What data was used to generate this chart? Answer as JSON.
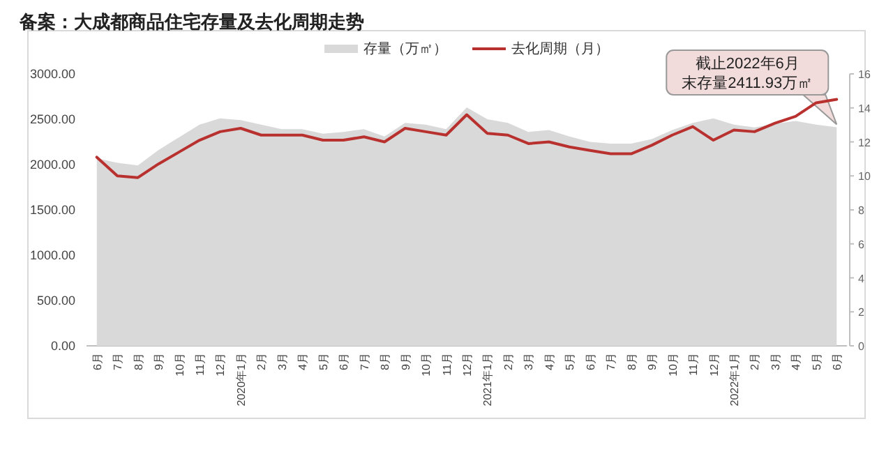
{
  "chart_data": {
    "type": "area",
    "title": "备案：大成都商品住宅存量及去化周期走势",
    "categories": [
      "6月",
      "7月",
      "8月",
      "9月",
      "10月",
      "11月",
      "12月",
      "2020年1月",
      "2月",
      "3月",
      "4月",
      "5月",
      "6月",
      "7月",
      "8月",
      "9月",
      "10月",
      "11月",
      "12月",
      "2021年1月",
      "2月",
      "3月",
      "4月",
      "5月",
      "6月",
      "7月",
      "8月",
      "9月",
      "10月",
      "11月",
      "12月",
      "2022年1月",
      "2月",
      "3月",
      "4月",
      "5月",
      "6月"
    ],
    "series": [
      {
        "name": "存量（万㎡）",
        "color": "#d9d9d9",
        "values": [
          2070,
          2020,
          1990,
          2160,
          2300,
          2440,
          2510,
          2490,
          2440,
          2390,
          2390,
          2340,
          2360,
          2390,
          2310,
          2460,
          2440,
          2390,
          2630,
          2500,
          2460,
          2360,
          2380,
          2310,
          2250,
          2230,
          2230,
          2280,
          2380,
          2460,
          2510,
          2440,
          2410,
          2450,
          2480,
          2440,
          2411.93
        ]
      },
      {
        "name": "去化周期（月）",
        "type": "line",
        "axis": "y2",
        "color": "#b8312f",
        "values": [
          11.1,
          10.0,
          9.9,
          10.7,
          11.4,
          12.1,
          12.6,
          12.8,
          12.4,
          12.4,
          12.4,
          12.1,
          12.1,
          12.3,
          12.0,
          12.8,
          12.6,
          12.4,
          13.6,
          12.5,
          12.4,
          11.9,
          12.0,
          11.7,
          11.5,
          11.3,
          11.3,
          11.8,
          12.4,
          12.9,
          12.1,
          12.7,
          12.6,
          13.1,
          13.5,
          14.3,
          14.5
        ]
      }
    ],
    "ylim": [
      0,
      3000
    ],
    "yticks": [
      {
        "value": 0,
        "label": "0.00"
      },
      {
        "value": 500,
        "label": "500.00"
      },
      {
        "value": 1000,
        "label": "1000.00"
      },
      {
        "value": 1500,
        "label": "1500.00"
      },
      {
        "value": 2000,
        "label": "2000.00"
      },
      {
        "value": 2500,
        "label": "2500.00"
      },
      {
        "value": 3000,
        "label": "3000.00"
      }
    ],
    "y2lim": [
      0,
      16
    ],
    "y2ticks": [
      0,
      2,
      4,
      6,
      8,
      10,
      12,
      14,
      16
    ],
    "legend": "top",
    "annotations": [
      "截止2022年6月末存量2411.93万㎡"
    ]
  }
}
